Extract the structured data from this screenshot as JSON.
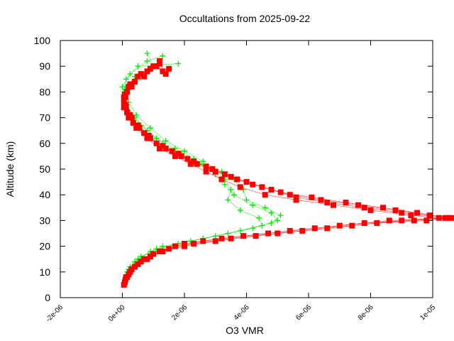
{
  "chart_data": {
    "type": "scatter",
    "title": "Occultations from 2025-09-22",
    "xlabel": "O3 VMR",
    "ylabel": "Altitude (km)",
    "xlim": [
      -2e-06,
      1e-05
    ],
    "ylim": [
      0,
      100
    ],
    "x_ticks": [
      {
        "value": -2e-06,
        "label": "-2e-06"
      },
      {
        "value": 0,
        "label": "0e+00"
      },
      {
        "value": 2e-06,
        "label": "2e-06"
      },
      {
        "value": 4e-06,
        "label": "4e-06"
      },
      {
        "value": 6e-06,
        "label": "6e-06"
      },
      {
        "value": 8e-06,
        "label": "8e-06"
      },
      {
        "value": 1e-05,
        "label": "1e-05"
      },
      {
        "value": 1.2e-05,
        "label": "1e-05"
      }
    ],
    "y_ticks": [
      {
        "value": 0,
        "label": "0"
      },
      {
        "value": 10,
        "label": "10"
      },
      {
        "value": 20,
        "label": "20"
      },
      {
        "value": 30,
        "label": "30"
      },
      {
        "value": 40,
        "label": "40"
      },
      {
        "value": 50,
        "label": "50"
      },
      {
        "value": 60,
        "label": "60"
      },
      {
        "value": 70,
        "label": "70"
      },
      {
        "value": 80,
        "label": "80"
      },
      {
        "value": 90,
        "label": "90"
      },
      {
        "value": 100,
        "label": "100"
      }
    ],
    "grid": false,
    "legend": "none",
    "series": [
      {
        "marker": "plus",
        "color": "#00ee00",
        "profiles": [
          [
            [
              6e-08,
              6
            ],
            [
              1.5e-07,
              10
            ],
            [
              4e-07,
              14
            ],
            [
              9e-07,
              18
            ],
            [
              1.8e-06,
              21
            ],
            [
              3e-06,
              24
            ],
            [
              4.2e-06,
              27
            ],
            [
              5e-06,
              30
            ],
            [
              4.8e-06,
              33
            ],
            [
              4.2e-06,
              36
            ],
            [
              3.6e-06,
              40
            ],
            [
              3.3e-06,
              44
            ],
            [
              3e-06,
              48
            ],
            [
              2.5e-06,
              52
            ],
            [
              1.9e-06,
              56
            ],
            [
              1.3e-06,
              60
            ],
            [
              8e-07,
              65
            ],
            [
              4e-07,
              70
            ],
            [
              1.5e-07,
              75
            ],
            [
              5e-08,
              80
            ],
            [
              1.2e-07,
              85
            ],
            [
              5e-07,
              90
            ],
            [
              1.8e-06,
              91
            ]
          ],
          [
            [
              8e-08,
              7
            ],
            [
              2e-07,
              11
            ],
            [
              5e-07,
              15
            ],
            [
              1.1e-06,
              19
            ],
            [
              2.2e-06,
              22
            ],
            [
              3.4e-06,
              25
            ],
            [
              4.5e-06,
              28
            ],
            [
              4.4e-06,
              31
            ],
            [
              3.8e-06,
              34
            ],
            [
              3.4e-06,
              38
            ],
            [
              3.5e-06,
              42
            ],
            [
              3.3e-06,
              46
            ],
            [
              2.9e-06,
              50
            ],
            [
              2.3e-06,
              54
            ],
            [
              1.7e-06,
              58
            ],
            [
              1.1e-06,
              62
            ],
            [
              6e-07,
              67
            ],
            [
              2.5e-07,
              72
            ],
            [
              8e-08,
              78
            ],
            [
              0,
              82
            ],
            [
              2.5e-07,
              87
            ],
            [
              8e-07,
              92
            ],
            [
              1.3e-06,
              94
            ]
          ],
          [
            [
              1e-07,
              8
            ],
            [
              2.5e-07,
              12
            ],
            [
              6e-07,
              16
            ],
            [
              1.3e-06,
              20
            ],
            [
              2.6e-06,
              23
            ],
            [
              3.8e-06,
              26
            ],
            [
              4.8e-06,
              29
            ],
            [
              5.1e-06,
              32
            ],
            [
              4.6e-06,
              35
            ],
            [
              4e-06,
              38
            ],
            [
              3.9e-06,
              42
            ],
            [
              3.6e-06,
              46
            ],
            [
              3.2e-06,
              49
            ],
            [
              2.6e-06,
              53
            ],
            [
              2e-06,
              57
            ],
            [
              1.4e-06,
              61
            ],
            [
              9e-07,
              66
            ],
            [
              4.5e-07,
              71
            ],
            [
              2e-07,
              76
            ],
            [
              1e-07,
              81
            ],
            [
              4e-07,
              86
            ],
            [
              1e-06,
              90
            ],
            [
              8e-07,
              95
            ]
          ]
        ]
      },
      {
        "marker": "square",
        "color": "#ff0000",
        "profiles": [
          [
            [
              5e-08,
              5
            ],
            [
              1.5e-07,
              8
            ],
            [
              4e-07,
              12
            ],
            [
              8e-07,
              15
            ],
            [
              1.3e-06,
              18
            ],
            [
              2e-06,
              20
            ],
            [
              3e-06,
              22
            ],
            [
              4.3e-06,
              24
            ],
            [
              5.8e-06,
              26
            ],
            [
              7.4e-06,
              28
            ],
            [
              9e-06,
              30
            ],
            [
              1.02e-05,
              31
            ],
            [
              9.3e-06,
              32
            ],
            [
              8e-06,
              34
            ],
            [
              6.8e-06,
              36
            ],
            [
              5.6e-06,
              38
            ],
            [
              4.6e-06,
              40
            ],
            [
              3.8e-06,
              43
            ],
            [
              3.2e-06,
              46
            ],
            [
              2.7e-06,
              49
            ],
            [
              2.2e-06,
              52
            ],
            [
              1.7e-06,
              55
            ],
            [
              1.2e-06,
              58
            ],
            [
              8e-07,
              62
            ],
            [
              4.5e-07,
              66
            ],
            [
              2e-07,
              70
            ],
            [
              5e-08,
              74
            ],
            [
              5e-08,
              78
            ],
            [
              2e-07,
              82
            ],
            [
              5e-07,
              86
            ],
            [
              9e-07,
              89
            ],
            [
              1.5e-06,
              89
            ]
          ],
          [
            [
              8e-08,
              6
            ],
            [
              2e-07,
              9
            ],
            [
              5e-07,
              13
            ],
            [
              9e-07,
              16
            ],
            [
              1.5e-06,
              19
            ],
            [
              2.3e-06,
              21
            ],
            [
              3.5e-06,
              23
            ],
            [
              5e-06,
              25
            ],
            [
              6.6e-06,
              27
            ],
            [
              8.2e-06,
              29
            ],
            [
              9.8e-06,
              30
            ],
            [
              1.05e-05,
              31
            ],
            [
              9.5e-06,
              33
            ],
            [
              8.4e-06,
              35
            ],
            [
              7.2e-06,
              37
            ],
            [
              6.1e-06,
              39
            ],
            [
              5.1e-06,
              41
            ],
            [
              4.2e-06,
              44
            ],
            [
              3.5e-06,
              47
            ],
            [
              2.9e-06,
              50
            ],
            [
              2.3e-06,
              53
            ],
            [
              1.8e-06,
              56
            ],
            [
              1.3e-06,
              59
            ],
            [
              8.5e-07,
              63
            ],
            [
              5e-07,
              67
            ],
            [
              2.5e-07,
              71
            ],
            [
              1e-07,
              75
            ],
            [
              8e-08,
              79
            ],
            [
              2.5e-07,
              83
            ],
            [
              6e-07,
              87
            ],
            [
              1e-06,
              90
            ],
            [
              1.3e-06,
              88
            ]
          ],
          [
            [
              1e-07,
              7
            ],
            [
              2.5e-07,
              10
            ],
            [
              6e-07,
              14
            ],
            [
              1e-06,
              17
            ],
            [
              1.7e-06,
              20
            ],
            [
              2.6e-06,
              22
            ],
            [
              3.9e-06,
              24
            ],
            [
              5.4e-06,
              26
            ],
            [
              7e-06,
              28
            ],
            [
              8.6e-06,
              30
            ],
            [
              1.06e-05,
              31
            ],
            [
              9.9e-06,
              32
            ],
            [
              8.8e-06,
              34
            ],
            [
              7.6e-06,
              36
            ],
            [
              6.4e-06,
              38
            ],
            [
              5.4e-06,
              40
            ],
            [
              4.5e-06,
              43
            ],
            [
              3.7e-06,
              46
            ],
            [
              3e-06,
              49
            ],
            [
              2.4e-06,
              52
            ],
            [
              1.9e-06,
              55
            ],
            [
              1.4e-06,
              58
            ],
            [
              9e-07,
              62
            ],
            [
              5.5e-07,
              66
            ],
            [
              3e-07,
              70
            ],
            [
              1.2e-07,
              74
            ],
            [
              1e-07,
              78
            ],
            [
              3e-07,
              82
            ],
            [
              7e-07,
              86
            ],
            [
              1.1e-06,
              90
            ],
            [
              1.2e-06,
              92
            ]
          ],
          [
            [
              1.2e-07,
              8
            ],
            [
              3e-07,
              11
            ],
            [
              7e-07,
              15
            ],
            [
              1.2e-06,
              18
            ],
            [
              2e-06,
              21
            ],
            [
              3.2e-06,
              23
            ],
            [
              4.7e-06,
              25
            ],
            [
              6.2e-06,
              27
            ],
            [
              7.8e-06,
              29
            ],
            [
              9.4e-06,
              30
            ],
            [
              1.04e-05,
              31
            ],
            [
              9e-06,
              33
            ],
            [
              7.8e-06,
              35
            ],
            [
              6.6e-06,
              37
            ],
            [
              5.6e-06,
              39
            ],
            [
              4.8e-06,
              42
            ],
            [
              4e-06,
              45
            ],
            [
              3.3e-06,
              48
            ],
            [
              2.7e-06,
              51
            ],
            [
              2.1e-06,
              54
            ],
            [
              1.6e-06,
              57
            ],
            [
              1.1e-06,
              60
            ],
            [
              7e-07,
              64
            ],
            [
              3.5e-07,
              68
            ],
            [
              1.5e-07,
              72
            ],
            [
              5e-08,
              76
            ],
            [
              1.5e-07,
              80
            ],
            [
              4e-07,
              84
            ],
            [
              8e-07,
              88
            ],
            [
              1.2e-06,
              91
            ],
            [
              1.4e-06,
              87
            ]
          ]
        ]
      }
    ]
  }
}
